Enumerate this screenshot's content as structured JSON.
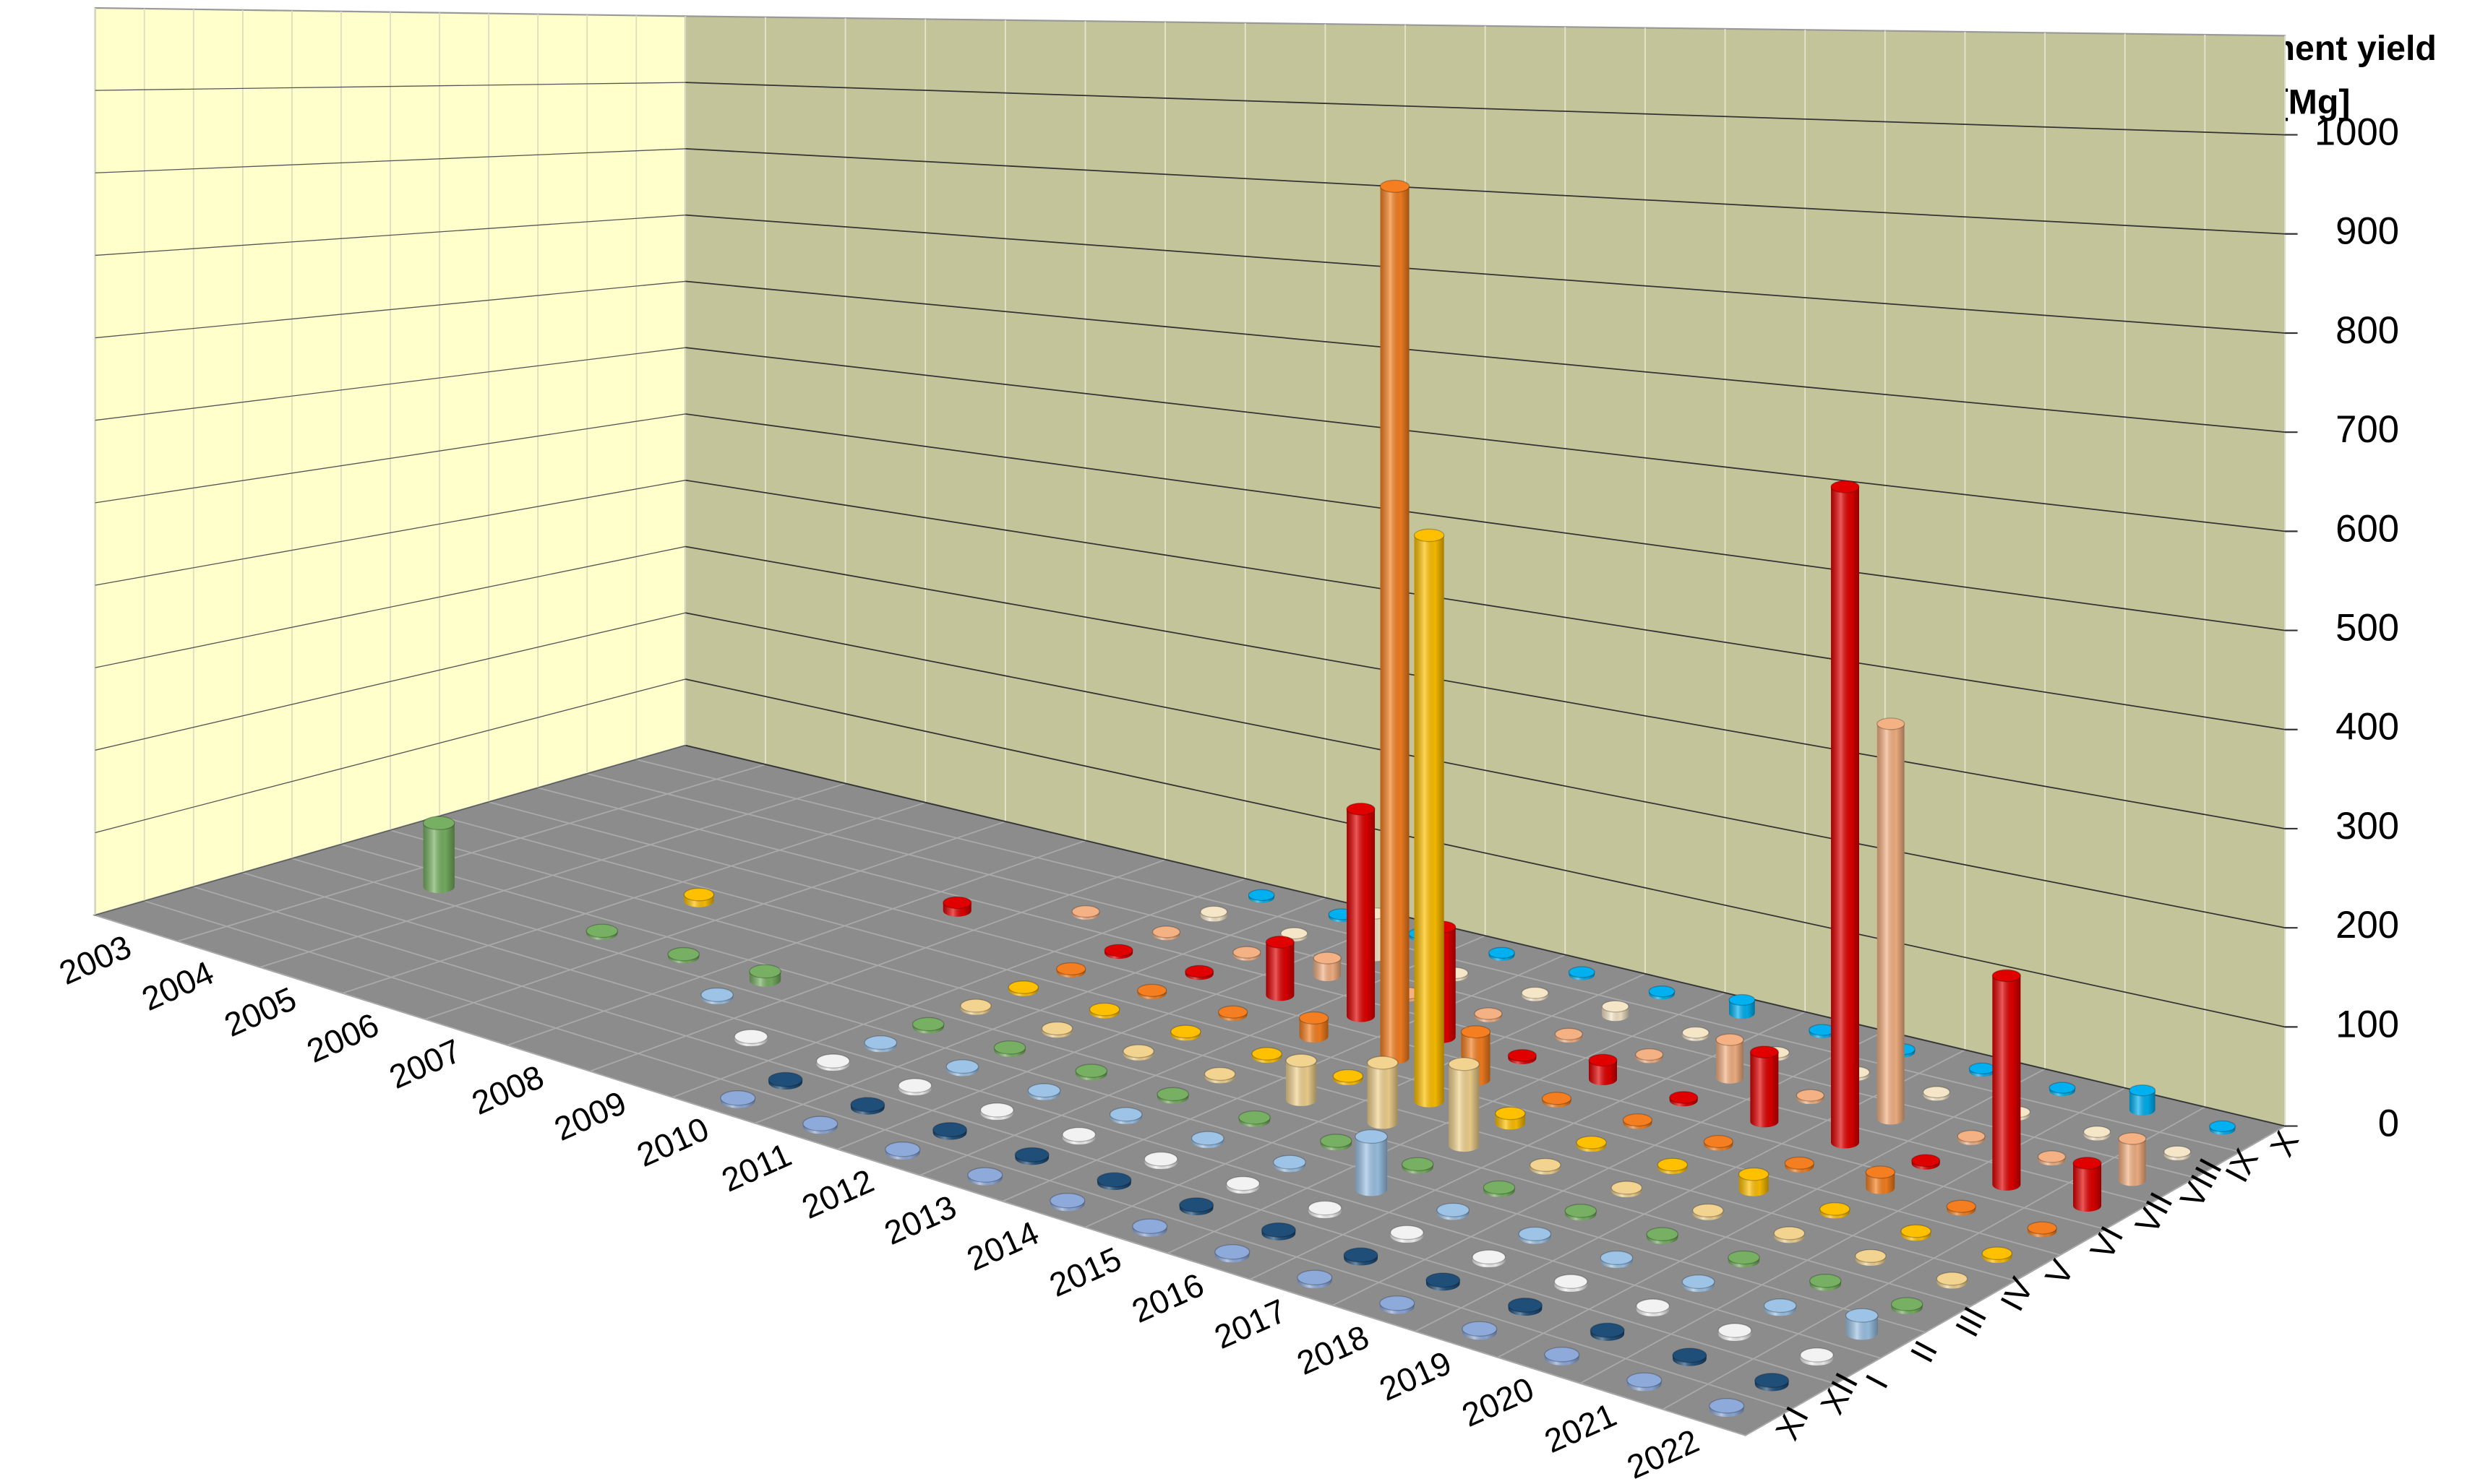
{
  "chart_data": {
    "type": "bar3d",
    "title": [
      "Sediment yield",
      "[Mg]"
    ],
    "categories": [
      "2003",
      "2004",
      "2005",
      "2006",
      "2007",
      "2008",
      "2009",
      "2010",
      "2011",
      "2012",
      "2013",
      "2014",
      "2015",
      "2016",
      "2017",
      "2018",
      "2019",
      "2020",
      "2021",
      "2022"
    ],
    "ylim": [
      0,
      1000
    ],
    "yticks": [
      0,
      100,
      200,
      300,
      400,
      500,
      600,
      700,
      800,
      900,
      1000
    ],
    "grid": true,
    "series": [
      {
        "name": "XI",
        "color": "#8eaadb",
        "values": [
          null,
          null,
          null,
          null,
          null,
          null,
          null,
          3,
          3,
          3,
          3,
          3,
          3,
          3,
          3,
          3,
          3,
          3,
          3,
          3
        ]
      },
      {
        "name": "XII",
        "color": "#1f4e79",
        "values": [
          null,
          null,
          null,
          null,
          null,
          null,
          null,
          3,
          3,
          3,
          3,
          3,
          3,
          3,
          3,
          3,
          3,
          3,
          3,
          3
        ]
      },
      {
        "name": "I",
        "color": "#f2f2f2",
        "values": [
          null,
          null,
          null,
          null,
          null,
          null,
          3,
          3,
          3,
          3,
          3,
          3,
          3,
          3,
          3,
          3,
          3,
          3,
          3,
          3
        ]
      },
      {
        "name": "II",
        "color": "#9dc3e6",
        "values": [
          null,
          null,
          null,
          null,
          null,
          3,
          null,
          3,
          3,
          3,
          3,
          3,
          3,
          50,
          3,
          3,
          3,
          3,
          3,
          15
        ]
      },
      {
        "name": "III",
        "color": "#77b062",
        "values": [
          null,
          80,
          null,
          3,
          3,
          10,
          null,
          3,
          3,
          3,
          3,
          3,
          3,
          3,
          3,
          3,
          3,
          3,
          3,
          3
        ]
      },
      {
        "name": "IV",
        "color": "#f2d38f",
        "values": [
          null,
          null,
          null,
          null,
          null,
          null,
          null,
          3,
          3,
          3,
          3,
          40,
          60,
          80,
          3,
          3,
          3,
          3,
          3,
          3
        ]
      },
      {
        "name": "V",
        "color": "#ffc000",
        "values": [
          null,
          null,
          null,
          8,
          null,
          null,
          null,
          3,
          3,
          3,
          3,
          3,
          580,
          10,
          3,
          3,
          15,
          3,
          3,
          3
        ]
      },
      {
        "name": "VI",
        "color": "#f57f20",
        "values": [
          null,
          null,
          null,
          null,
          null,
          null,
          null,
          3,
          3,
          3,
          20,
          930,
          50,
          3,
          3,
          3,
          3,
          15,
          3,
          3
        ]
      },
      {
        "name": "VII",
        "color": "#e00000",
        "values": [
          null,
          null,
          null,
          null,
          null,
          10,
          null,
          3,
          3,
          60,
          230,
          120,
          3,
          20,
          3,
          70,
          650,
          3,
          200,
          40
        ]
      },
      {
        "name": "VIII",
        "color": "#f4b183",
        "values": [
          null,
          null,
          null,
          null,
          null,
          null,
          3,
          3,
          3,
          20,
          3,
          3,
          3,
          3,
          40,
          3,
          400,
          3,
          3,
          40
        ]
      },
      {
        "name": "IX",
        "color": "#f5e6c8",
        "values": [
          null,
          null,
          null,
          null,
          null,
          null,
          null,
          5,
          3,
          50,
          3,
          3,
          10,
          3,
          3,
          3,
          3,
          3,
          3,
          3
        ]
      },
      {
        "name": "X",
        "color": "#00b0f0",
        "values": [
          null,
          null,
          null,
          null,
          null,
          null,
          null,
          3,
          3,
          3,
          3,
          3,
          3,
          15,
          3,
          3,
          3,
          3,
          20,
          3
        ]
      }
    ]
  }
}
